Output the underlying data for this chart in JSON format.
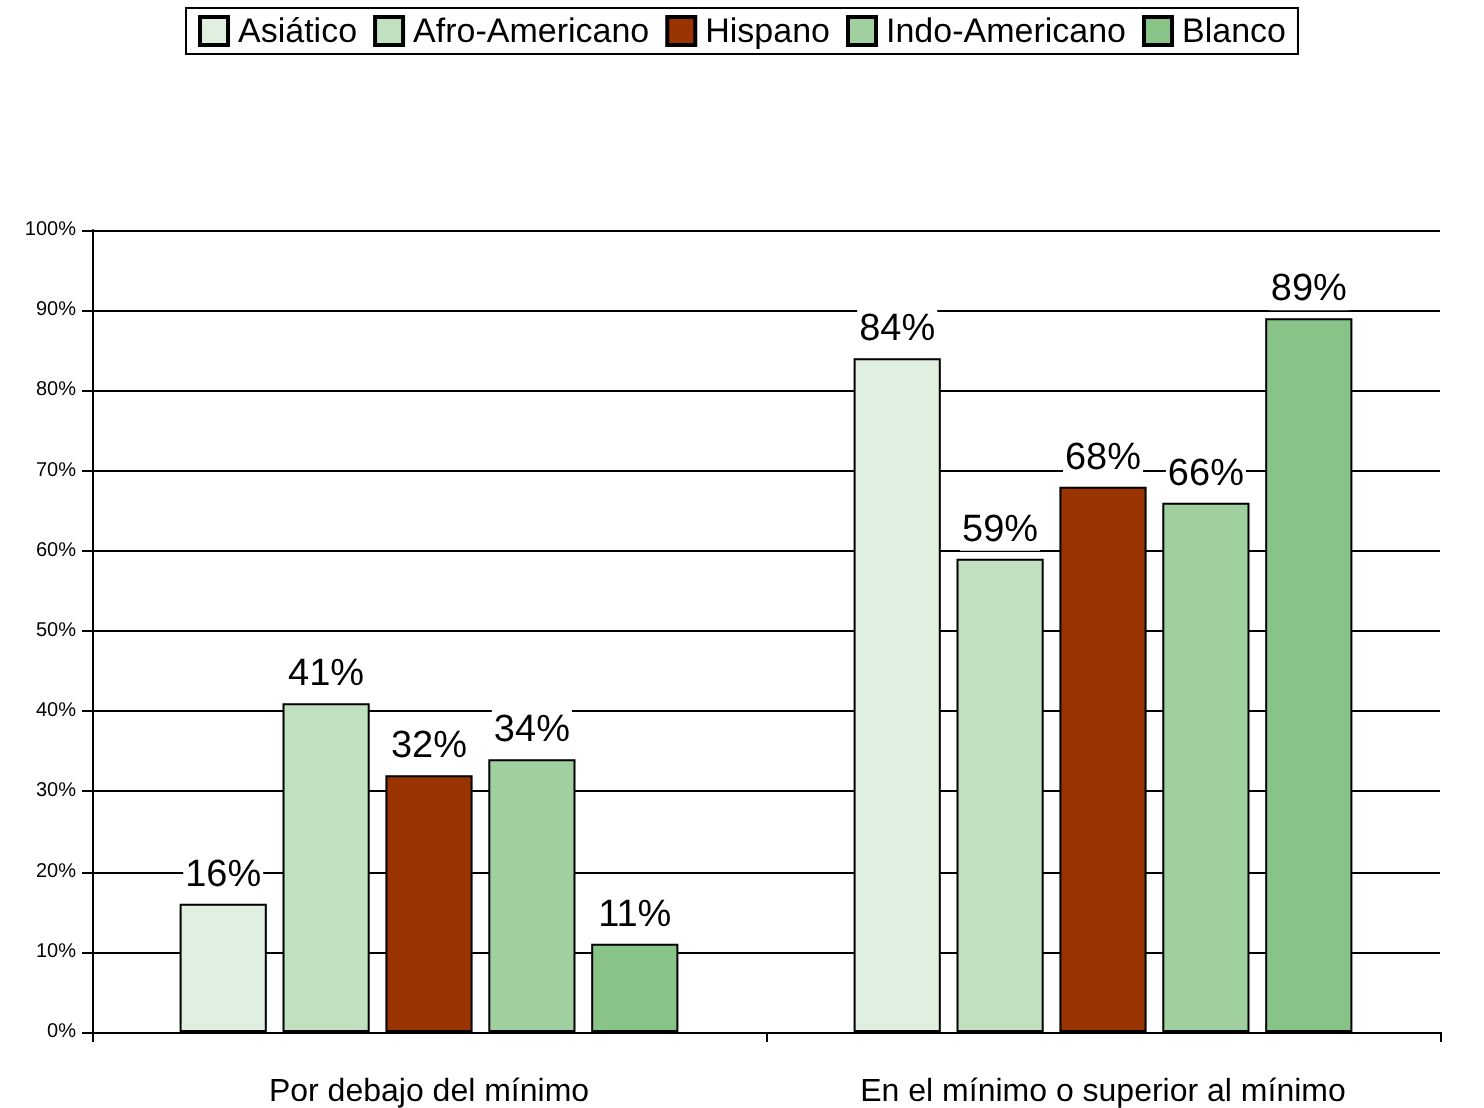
{
  "chart_data": {
    "type": "bar",
    "categories": [
      "Por debajo del mínimo",
      "En el mínimo o superior al mínimo"
    ],
    "series": [
      {
        "name": "Asiático",
        "color": "#e0efe0",
        "values": [
          16,
          84
        ],
        "value_labels": [
          "16%",
          "84%"
        ]
      },
      {
        "name": "Afro-Americano",
        "color": "#c0e0c0",
        "values": [
          41,
          59
        ],
        "value_labels": [
          "41%",
          "59%"
        ]
      },
      {
        "name": "Hispano",
        "color": "#993300",
        "values": [
          32,
          68
        ],
        "value_labels": [
          "32%",
          "68%"
        ]
      },
      {
        "name": "Indo-Americano",
        "color": "#a0d0a0",
        "values": [
          34,
          66
        ],
        "value_labels": [
          "34%",
          "66%"
        ]
      },
      {
        "name": "Blanco",
        "color": "#88c488",
        "values": [
          11,
          89
        ],
        "value_labels": [
          "11%",
          "89%"
        ]
      }
    ],
    "ylim": [
      0,
      100
    ],
    "yticks": [
      {
        "value": 0,
        "label": "0%"
      },
      {
        "value": 10,
        "label": "10%"
      },
      {
        "value": 20,
        "label": "20%"
      },
      {
        "value": 30,
        "label": "30%"
      },
      {
        "value": 40,
        "label": "40%"
      },
      {
        "value": 50,
        "label": "50%"
      },
      {
        "value": 60,
        "label": "60%"
      },
      {
        "value": 70,
        "label": "70%"
      },
      {
        "value": 80,
        "label": "80%"
      },
      {
        "value": 90,
        "label": "90%"
      },
      {
        "value": 100,
        "label": "100%"
      }
    ],
    "grid": "y",
    "legend": "top"
  }
}
